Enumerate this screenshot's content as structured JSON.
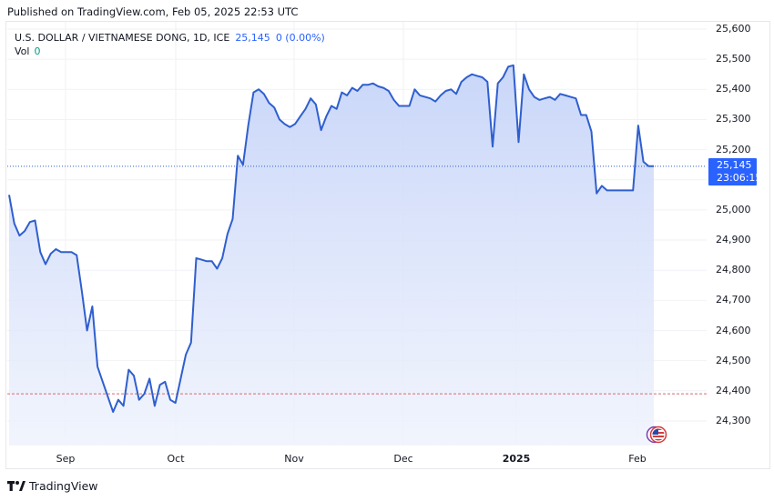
{
  "header": {
    "published": "Published on TradingView.com, Feb 05, 2025 22:53 UTC"
  },
  "legend": {
    "symbol": "U.S. DOLLAR / VIETNAMESE DONG, 1D, ICE",
    "last": "25,145",
    "change": "0 (0.00%)",
    "vol_label": "Vol",
    "vol_value": "0"
  },
  "price_tag": {
    "price": "25,145",
    "countdown": "23:06:15"
  },
  "y_axis": [
    "25,600",
    "25,500",
    "25,400",
    "25,300",
    "25,200",
    "25,000",
    "24,900",
    "24,800",
    "24,700",
    "24,600",
    "24,500",
    "24,400",
    "24,300"
  ],
  "x_axis": [
    {
      "label": "Sep",
      "bold": false
    },
    {
      "label": "Oct",
      "bold": false
    },
    {
      "label": "Nov",
      "bold": false
    },
    {
      "label": "Dec",
      "bold": false
    },
    {
      "label": "2025",
      "bold": true
    },
    {
      "label": "Feb",
      "bold": false
    }
  ],
  "footer": {
    "brand": "TradingView"
  },
  "colors": {
    "line": "#2f5fce",
    "fill_top": "#c6d4f8",
    "fill_bottom": "#eef2fd",
    "accent": "#2962ff",
    "volume": "#089981",
    "dashed_line": "#d86a6a"
  },
  "chart_data": {
    "type": "area",
    "title": "U.S. DOLLAR / VIETNAMESE DONG, 1D, ICE",
    "xlabel": "",
    "ylabel": "",
    "ylim": [
      24220,
      25640
    ],
    "grid": true,
    "last_price": 25145,
    "reference_line": 24390,
    "x_ticks": [
      "Sep",
      "Oct",
      "Nov",
      "Dec",
      "2025",
      "Feb"
    ],
    "series": [
      {
        "name": "USD/VND",
        "approx_path": [
          [
            "Aug mid",
            25050
          ],
          [
            "",
            24955
          ],
          [
            "",
            24915
          ],
          [
            "",
            24930
          ],
          [
            "",
            24960
          ],
          [
            "",
            24965
          ],
          [
            "",
            24860
          ],
          [
            "",
            24820
          ],
          [
            "",
            24855
          ],
          [
            "",
            24870
          ],
          [
            "",
            24860
          ],
          [
            "",
            24860
          ],
          [
            "",
            24860
          ],
          [
            "",
            24850
          ],
          [
            "",
            24730
          ],
          [
            "",
            24600
          ],
          [
            "",
            24680
          ],
          [
            "",
            24480
          ],
          [
            "",
            24430
          ],
          [
            "",
            24380
          ],
          [
            "",
            24330
          ],
          [
            "",
            24370
          ],
          [
            "",
            24350
          ],
          [
            "",
            24470
          ],
          [
            "",
            24450
          ],
          [
            "",
            24370
          ],
          [
            "",
            24390
          ],
          [
            "",
            24440
          ],
          [
            "",
            24350
          ],
          [
            "",
            24420
          ],
          [
            "",
            24430
          ],
          [
            "",
            24370
          ],
          [
            "",
            24360
          ],
          [
            "",
            24440
          ],
          [
            "",
            24520
          ],
          [
            "",
            24560
          ],
          [
            "Oct mid",
            24840
          ],
          [
            "",
            24835
          ],
          [
            "",
            24830
          ],
          [
            "",
            24830
          ],
          [
            "",
            24805
          ],
          [
            "",
            24840
          ],
          [
            "",
            24920
          ],
          [
            "",
            24970
          ],
          [
            "",
            25180
          ],
          [
            "",
            25150
          ],
          [
            "",
            25280
          ],
          [
            "",
            25390
          ],
          [
            "",
            25400
          ],
          [
            "",
            25385
          ],
          [
            "",
            25355
          ],
          [
            "",
            25340
          ],
          [
            "",
            25300
          ],
          [
            "",
            25285
          ],
          [
            "",
            25275
          ],
          [
            "",
            25285
          ],
          [
            "",
            25310
          ],
          [
            "",
            25335
          ],
          [
            "",
            25370
          ],
          [
            "",
            25350
          ],
          [
            "",
            25265
          ],
          [
            "",
            25310
          ],
          [
            "",
            25345
          ],
          [
            "",
            25335
          ],
          [
            "",
            25390
          ],
          [
            "",
            25380
          ],
          [
            "",
            25405
          ],
          [
            "",
            25395
          ],
          [
            "",
            25415
          ],
          [
            "",
            25415
          ],
          [
            "",
            25420
          ],
          [
            "",
            25410
          ],
          [
            "",
            25405
          ],
          [
            "",
            25395
          ],
          [
            "",
            25365
          ],
          [
            "",
            25345
          ],
          [
            "",
            25345
          ],
          [
            "",
            25345
          ],
          [
            "",
            25400
          ],
          [
            "",
            25380
          ],
          [
            "",
            25375
          ],
          [
            "",
            25370
          ],
          [
            "",
            25360
          ],
          [
            "",
            25380
          ],
          [
            "",
            25395
          ],
          [
            "",
            25400
          ],
          [
            "",
            25385
          ],
          [
            "",
            25425
          ],
          [
            "",
            25440
          ],
          [
            "",
            25450
          ],
          [
            "",
            25445
          ],
          [
            "",
            25440
          ],
          [
            "",
            25425
          ],
          [
            "",
            25210
          ],
          [
            "",
            25420
          ],
          [
            "",
            25440
          ],
          [
            "",
            25475
          ],
          [
            "",
            25480
          ],
          [
            "",
            25225
          ],
          [
            "",
            25450
          ],
          [
            "",
            25400
          ],
          [
            "",
            25375
          ],
          [
            "",
            25365
          ],
          [
            "",
            25370
          ],
          [
            "",
            25375
          ],
          [
            "",
            25365
          ],
          [
            "",
            25385
          ],
          [
            "",
            25380
          ],
          [
            "",
            25375
          ],
          [
            "",
            25370
          ],
          [
            "",
            25315
          ],
          [
            "",
            25315
          ],
          [
            "",
            25260
          ],
          [
            "",
            25055
          ],
          [
            "",
            25080
          ],
          [
            "",
            25065
          ],
          [
            "",
            25065
          ],
          [
            "",
            25065
          ],
          [
            "",
            25065
          ],
          [
            "",
            25065
          ],
          [
            "",
            25065
          ],
          [
            "",
            25280
          ],
          [
            "",
            25160
          ],
          [
            "",
            25145
          ],
          [
            "Feb 5",
            25145
          ]
        ]
      }
    ]
  }
}
